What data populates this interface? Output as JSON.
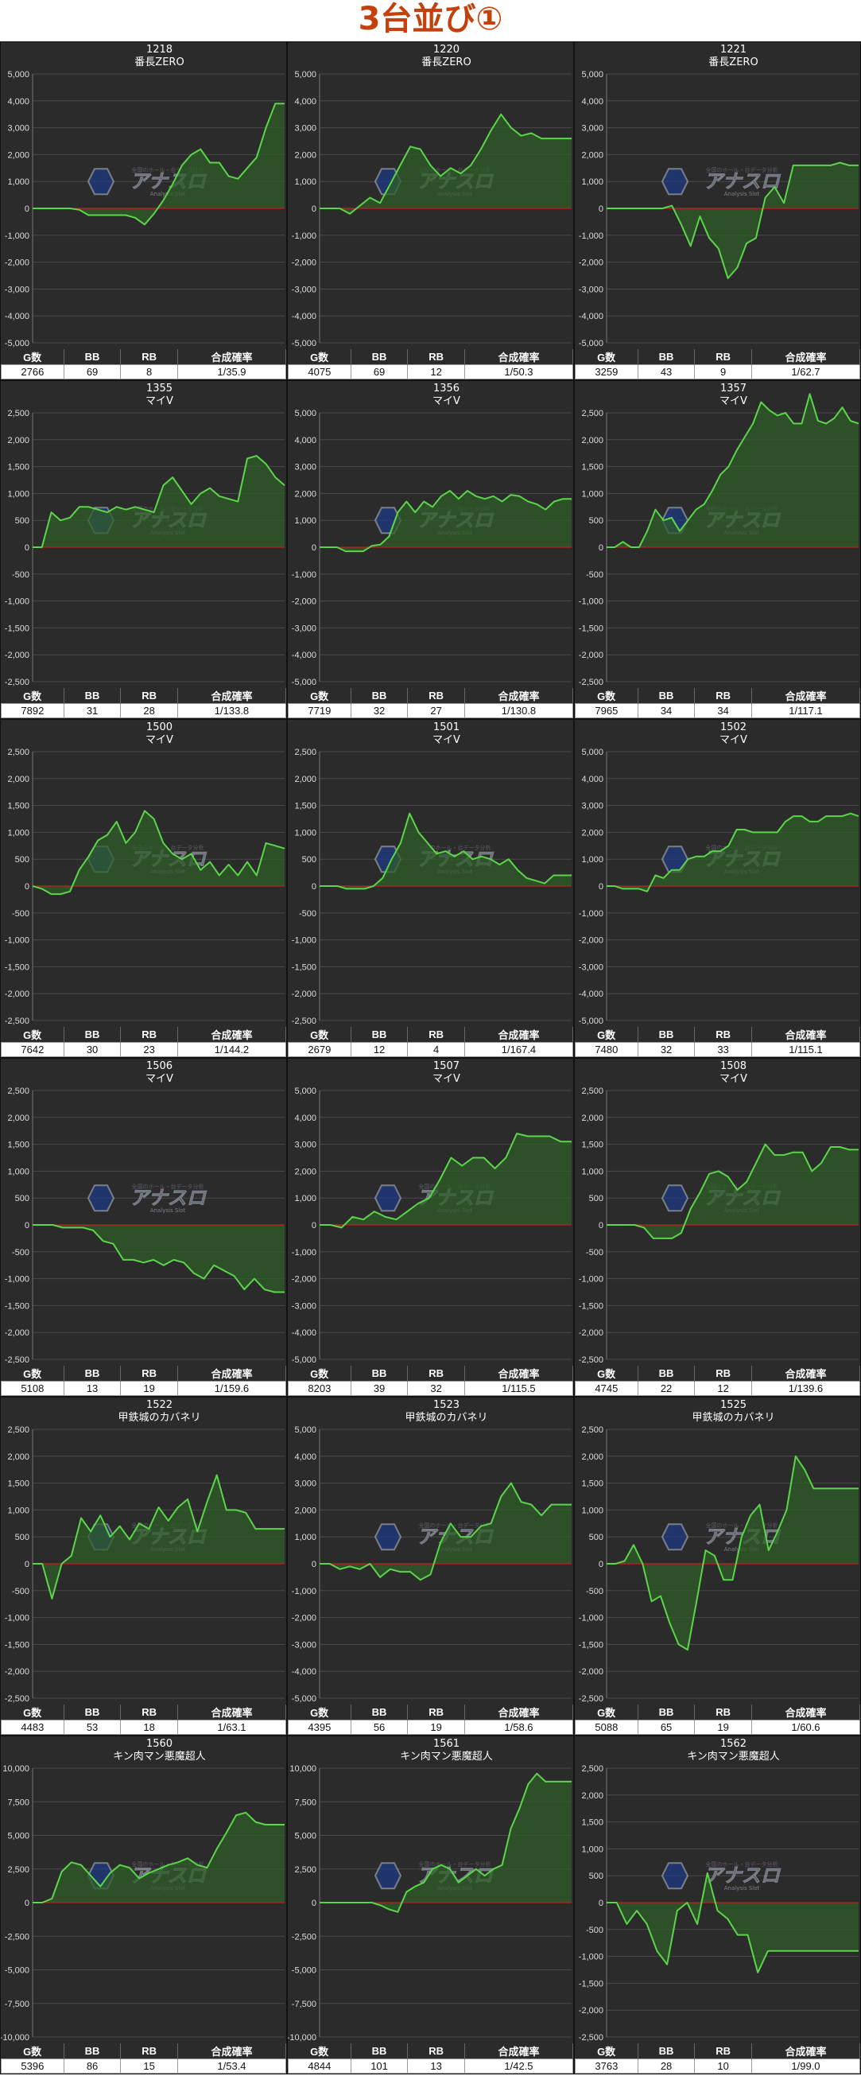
{
  "page": {
    "title": "3台並び①"
  },
  "table_headers": [
    "G数",
    "BB",
    "RB",
    "合成確率"
  ],
  "colors": {
    "line": "#5bd54a",
    "fill": "#2f5d2a",
    "zero": "#c81e1e",
    "grid": "#4a4a4a",
    "bg": "#2b2b2b",
    "title": "#c2410c"
  },
  "watermark": {
    "main": "アナスロ",
    "sub": "Analysis Slot",
    "top": "全国のホール・台データ分析"
  },
  "chart_data": [
    {
      "type": "line",
      "number": "1218",
      "machine": "番長ZERO",
      "ylim": [
        -5000,
        5000
      ],
      "yticks": [
        -5000,
        -4000,
        -3000,
        -2000,
        -1000,
        0,
        1000,
        2000,
        3000,
        4000,
        5000
      ],
      "tick_labels": [
        "-5,000",
        "-4,000",
        "-3,000",
        "-2,000",
        "-1,000",
        "0",
        "1,000",
        "2,000",
        "3,000",
        "4,000",
        "5,000"
      ],
      "values": [
        0,
        0,
        0,
        0,
        0,
        -50,
        -250,
        -250,
        -250,
        -250,
        -250,
        -350,
        -600,
        -200,
        300,
        900,
        1600,
        2000,
        2200,
        1700,
        1700,
        1200,
        1100,
        1500,
        1900,
        3000,
        3900,
        3900
      ],
      "stats": {
        "g": "2766",
        "bb": "69",
        "rb": "8",
        "prob": "1/35.9"
      }
    },
    {
      "type": "line",
      "number": "1220",
      "machine": "番長ZERO",
      "ylim": [
        -5000,
        5000
      ],
      "yticks": [
        -5000,
        -4000,
        -3000,
        -2000,
        -1000,
        0,
        1000,
        2000,
        3000,
        4000,
        5000
      ],
      "tick_labels": [
        "-5,000",
        "-4,000",
        "-3,000",
        "-2,000",
        "-1,000",
        "0",
        "1,000",
        "2,000",
        "3,000",
        "4,000",
        "5,000"
      ],
      "values": [
        0,
        0,
        0,
        -200,
        100,
        400,
        200,
        900,
        1600,
        2300,
        2200,
        1600,
        1200,
        1500,
        1300,
        1600,
        2200,
        2900,
        3500,
        3000,
        2700,
        2800,
        2600,
        2600,
        2600,
        2600
      ],
      "stats": {
        "g": "4075",
        "bb": "69",
        "rb": "12",
        "prob": "1/50.3"
      }
    },
    {
      "type": "line",
      "number": "1221",
      "machine": "番長ZERO",
      "ylim": [
        -5000,
        5000
      ],
      "yticks": [
        -5000,
        -4000,
        -3000,
        -2000,
        -1000,
        0,
        1000,
        2000,
        3000,
        4000,
        5000
      ],
      "tick_labels": [
        "-5,000",
        "-4,000",
        "-3,000",
        "-2,000",
        "-1,000",
        "0",
        "1,000",
        "2,000",
        "3,000",
        "4,000",
        "5,000"
      ],
      "values": [
        0,
        0,
        0,
        0,
        0,
        0,
        0,
        100,
        -600,
        -1400,
        -300,
        -1100,
        -1500,
        -2600,
        -2200,
        -1300,
        -1100,
        400,
        800,
        200,
        1600,
        1600,
        1600,
        1600,
        1600,
        1700,
        1600,
        1600
      ],
      "stats": {
        "g": "3259",
        "bb": "43",
        "rb": "9",
        "prob": "1/62.7"
      }
    },
    {
      "type": "line",
      "number": "1355",
      "machine": "マイV",
      "ylim": [
        -2500,
        2500
      ],
      "yticks": [
        -2500,
        -2000,
        -1500,
        -1000,
        -500,
        0,
        500,
        1000,
        1500,
        2000,
        2500
      ],
      "tick_labels": [
        "-2,500",
        "-2,000",
        "-1,500",
        "-1,000",
        "-500",
        "0",
        "500",
        "1,000",
        "1,500",
        "2,000",
        "2,500"
      ],
      "values": [
        0,
        0,
        650,
        500,
        550,
        750,
        750,
        700,
        650,
        750,
        700,
        750,
        700,
        650,
        1150,
        1300,
        1050,
        800,
        1000,
        1100,
        950,
        900,
        850,
        1650,
        1700,
        1550,
        1300,
        1150
      ],
      "stats": {
        "g": "7892",
        "bb": "31",
        "rb": "28",
        "prob": "1/133.8"
      }
    },
    {
      "type": "line",
      "number": "1356",
      "machine": "マイV",
      "ylim": [
        -5000,
        5000
      ],
      "yticks": [
        -5000,
        -4000,
        -3000,
        -2000,
        -1000,
        0,
        1000,
        2000,
        3000,
        4000,
        5000
      ],
      "tick_labels": [
        "-5,000",
        "-4,000",
        "-3,000",
        "-2,000",
        "-1,000",
        "0",
        "1,000",
        "2,000",
        "3,000",
        "4,000",
        "5,000"
      ],
      "values": [
        0,
        0,
        0,
        -150,
        -150,
        -150,
        50,
        100,
        400,
        1300,
        1700,
        1300,
        1700,
        1500,
        1900,
        2100,
        1800,
        2100,
        1900,
        1800,
        1900,
        1700,
        1950,
        1900,
        1700,
        1600,
        1400,
        1700,
        1800,
        1800
      ],
      "stats": {
        "g": "7719",
        "bb": "32",
        "rb": "27",
        "prob": "1/130.8"
      }
    },
    {
      "type": "line",
      "number": "1357",
      "machine": "マイV",
      "ylim": [
        -2500,
        2500
      ],
      "yticks": [
        -2500,
        -2000,
        -1500,
        -1000,
        -500,
        0,
        500,
        1000,
        1500,
        2000,
        2500
      ],
      "tick_labels": [
        "-2,500",
        "-2,000",
        "-1,500",
        "-1,000",
        "-500",
        "0",
        "500",
        "1,000",
        "1,500",
        "2,000",
        "2,500"
      ],
      "values": [
        0,
        0,
        100,
        0,
        0,
        300,
        700,
        500,
        550,
        300,
        500,
        700,
        800,
        1050,
        1350,
        1500,
        1800,
        2050,
        2300,
        2700,
        2550,
        2450,
        2500,
        2300,
        2300,
        2850,
        2350,
        2300,
        2400,
        2600,
        2350,
        2300
      ],
      "stats": {
        "g": "7965",
        "bb": "34",
        "rb": "34",
        "prob": "1/117.1"
      }
    },
    {
      "type": "line",
      "number": "1500",
      "machine": "マイV",
      "ylim": [
        -2500,
        2500
      ],
      "yticks": [
        -2500,
        -2000,
        -1500,
        -1000,
        -500,
        0,
        500,
        1000,
        1500,
        2000,
        2500
      ],
      "tick_labels": [
        "-2,500",
        "-2,000",
        "-1,500",
        "-1,000",
        "-500",
        "0",
        "500",
        "1,000",
        "1,500",
        "2,000",
        "2,500"
      ],
      "values": [
        0,
        -50,
        -150,
        -150,
        -100,
        300,
        550,
        850,
        950,
        1200,
        800,
        1000,
        1400,
        1250,
        800,
        600,
        500,
        600,
        300,
        450,
        200,
        400,
        200,
        450,
        200,
        800,
        750,
        700
      ],
      "stats": {
        "g": "7642",
        "bb": "30",
        "rb": "23",
        "prob": "1/144.2"
      }
    },
    {
      "type": "line",
      "number": "1501",
      "machine": "マイV",
      "ylim": [
        -2500,
        2500
      ],
      "yticks": [
        -2500,
        -2000,
        -1500,
        -1000,
        -500,
        0,
        500,
        1000,
        1500,
        2000,
        2500
      ],
      "tick_labels": [
        "-2,500",
        "-2,000",
        "-1,500",
        "-1,000",
        "-500",
        "0",
        "500",
        "1,000",
        "1,500",
        "2,000",
        "2,500"
      ],
      "values": [
        0,
        0,
        0,
        -50,
        -50,
        -50,
        0,
        150,
        500,
        800,
        1350,
        1000,
        800,
        600,
        650,
        550,
        650,
        500,
        550,
        500,
        400,
        500,
        300,
        150,
        100,
        50,
        200,
        200,
        200
      ],
      "stats": {
        "g": "2679",
        "bb": "12",
        "rb": "4",
        "prob": "1/167.4"
      }
    },
    {
      "type": "line",
      "number": "1502",
      "machine": "マイV",
      "ylim": [
        -5000,
        5000
      ],
      "yticks": [
        -5000,
        -4000,
        -3000,
        -2000,
        -1000,
        0,
        1000,
        2000,
        3000,
        4000,
        5000
      ],
      "tick_labels": [
        "-5,000",
        "-4,000",
        "-3,000",
        "-2,000",
        "-1,000",
        "0",
        "1,000",
        "2,000",
        "3,000",
        "4,000",
        "5,000"
      ],
      "values": [
        0,
        0,
        -100,
        -100,
        -100,
        -200,
        400,
        300,
        600,
        600,
        1000,
        1100,
        1100,
        1300,
        1300,
        1500,
        2100,
        2100,
        2000,
        2000,
        2000,
        2000,
        2400,
        2600,
        2600,
        2400,
        2400,
        2600,
        2600,
        2600,
        2700,
        2600
      ],
      "stats": {
        "g": "7480",
        "bb": "32",
        "rb": "33",
        "prob": "1/115.1"
      }
    },
    {
      "type": "line",
      "number": "1506",
      "machine": "マイV",
      "ylim": [
        -2500,
        2500
      ],
      "yticks": [
        -2500,
        -2000,
        -1500,
        -1000,
        -500,
        0,
        500,
        1000,
        1500,
        2000,
        2500
      ],
      "tick_labels": [
        "-2,500",
        "-2,000",
        "-1,500",
        "-1,000",
        "-500",
        "0",
        "500",
        "1,000",
        "1,500",
        "2,000",
        "2,500"
      ],
      "values": [
        0,
        0,
        0,
        -50,
        -50,
        -50,
        -100,
        -300,
        -350,
        -650,
        -650,
        -700,
        -650,
        -750,
        -650,
        -700,
        -900,
        -1000,
        -750,
        -850,
        -950,
        -1200,
        -1000,
        -1200,
        -1250,
        -1250
      ],
      "stats": {
        "g": "5108",
        "bb": "13",
        "rb": "19",
        "prob": "1/159.6"
      }
    },
    {
      "type": "line",
      "number": "1507",
      "machine": "マイV",
      "ylim": [
        -5000,
        5000
      ],
      "yticks": [
        -5000,
        -4000,
        -3000,
        -2000,
        -1000,
        0,
        1000,
        2000,
        3000,
        4000,
        5000
      ],
      "tick_labels": [
        "-5,000",
        "-4,000",
        "-3,000",
        "-2,000",
        "-1,000",
        "0",
        "1,000",
        "2,000",
        "3,000",
        "4,000",
        "5,000"
      ],
      "values": [
        0,
        0,
        -100,
        300,
        200,
        500,
        300,
        200,
        500,
        800,
        1000,
        1700,
        2500,
        2200,
        2500,
        2500,
        2100,
        2500,
        3400,
        3300,
        3300,
        3300,
        3100,
        3100
      ],
      "stats": {
        "g": "8203",
        "bb": "39",
        "rb": "32",
        "prob": "1/115.5"
      }
    },
    {
      "type": "line",
      "number": "1508",
      "machine": "マイV",
      "ylim": [
        -2500,
        2500
      ],
      "yticks": [
        -2500,
        -2000,
        -1500,
        -1000,
        -500,
        0,
        500,
        1000,
        1500,
        2000,
        2500
      ],
      "tick_labels": [
        "-2,500",
        "-2,000",
        "-1,500",
        "-1,000",
        "-500",
        "0",
        "500",
        "1,000",
        "1,500",
        "2,000",
        "2,500"
      ],
      "values": [
        0,
        0,
        0,
        0,
        -50,
        -250,
        -250,
        -250,
        -150,
        300,
        600,
        950,
        1000,
        900,
        650,
        800,
        1150,
        1500,
        1300,
        1300,
        1350,
        1350,
        1000,
        1150,
        1450,
        1450,
        1400,
        1400
      ],
      "stats": {
        "g": "4745",
        "bb": "22",
        "rb": "12",
        "prob": "1/139.6"
      }
    },
    {
      "type": "line",
      "number": "1522",
      "machine": "甲鉄城のカバネリ",
      "ylim": [
        -2500,
        2500
      ],
      "yticks": [
        -2500,
        -2000,
        -1500,
        -1000,
        -500,
        0,
        500,
        1000,
        1500,
        2000,
        2500
      ],
      "tick_labels": [
        "-2,500",
        "-2,000",
        "-1,500",
        "-1,000",
        "-500",
        "0",
        "500",
        "1,000",
        "1,500",
        "2,000",
        "2,500"
      ],
      "values": [
        0,
        0,
        -650,
        0,
        150,
        850,
        600,
        900,
        500,
        700,
        450,
        750,
        650,
        1050,
        800,
        1050,
        1200,
        600,
        1150,
        1650,
        1000,
        1000,
        950,
        650,
        650,
        650,
        650
      ],
      "stats": {
        "g": "4483",
        "bb": "53",
        "rb": "18",
        "prob": "1/63.1"
      }
    },
    {
      "type": "line",
      "number": "1523",
      "machine": "甲鉄城のカバネリ",
      "ylim": [
        -5000,
        5000
      ],
      "yticks": [
        -5000,
        -4000,
        -3000,
        -2000,
        -1000,
        0,
        1000,
        2000,
        3000,
        4000,
        5000
      ],
      "tick_labels": [
        "-5,000",
        "-4,000",
        "-3,000",
        "-2,000",
        "-1,000",
        "0",
        "1,000",
        "2,000",
        "3,000",
        "4,000",
        "5,000"
      ],
      "values": [
        0,
        0,
        -200,
        -100,
        -200,
        0,
        -500,
        -200,
        -300,
        -300,
        -600,
        -400,
        800,
        1500,
        1000,
        1000,
        1400,
        1500,
        2500,
        3000,
        2300,
        2200,
        1800,
        2200,
        2200,
        2200
      ],
      "stats": {
        "g": "4395",
        "bb": "56",
        "rb": "19",
        "prob": "1/58.6"
      }
    },
    {
      "type": "line",
      "number": "1525",
      "machine": "甲鉄城のカバネリ",
      "ylim": [
        -2500,
        2500
      ],
      "yticks": [
        -2500,
        -2000,
        -1500,
        -1000,
        -500,
        0,
        500,
        1000,
        1500,
        2000,
        2500
      ],
      "tick_labels": [
        "-2,500",
        "-2,000",
        "-1,500",
        "-1,000",
        "-500",
        "0",
        "500",
        "1,000",
        "1,500",
        "2,000",
        "2,500"
      ],
      "values": [
        0,
        0,
        50,
        350,
        0,
        -700,
        -600,
        -1100,
        -1500,
        -1600,
        -700,
        250,
        150,
        -300,
        -300,
        500,
        900,
        1100,
        250,
        600,
        1000,
        2000,
        1750,
        1400,
        1400,
        1400,
        1400,
        1400,
        1400
      ],
      "stats": {
        "g": "5088",
        "bb": "65",
        "rb": "19",
        "prob": "1/60.6"
      }
    },
    {
      "type": "line",
      "number": "1560",
      "machine": "キン肉マン悪魔超人",
      "ylim": [
        -10000,
        10000
      ],
      "yticks": [
        -10000,
        -7500,
        -5000,
        -2500,
        0,
        2500,
        5000,
        7500,
        10000
      ],
      "tick_labels": [
        "-10,000",
        "-7,500",
        "-5,000",
        "-2,500",
        "0",
        "2,500",
        "5,000",
        "7,500",
        "10,000"
      ],
      "values": [
        0,
        0,
        300,
        2300,
        3000,
        2800,
        2000,
        1200,
        2200,
        2800,
        2600,
        1800,
        2200,
        2500,
        2800,
        3000,
        3300,
        2800,
        2600,
        4000,
        5200,
        6500,
        6700,
        6000,
        5800,
        5800,
        5800
      ],
      "stats": {
        "g": "5396",
        "bb": "86",
        "rb": "15",
        "prob": "1/53.4"
      }
    },
    {
      "type": "line",
      "number": "1561",
      "machine": "キン肉マン悪魔超人",
      "ylim": [
        -10000,
        10000
      ],
      "yticks": [
        -10000,
        -7500,
        -5000,
        -2500,
        0,
        2500,
        5000,
        7500,
        10000
      ],
      "tick_labels": [
        "-10,000",
        "-7,500",
        "-5,000",
        "-2,500",
        "0",
        "2,500",
        "5,000",
        "7,500",
        "10,000"
      ],
      "values": [
        0,
        0,
        0,
        0,
        0,
        0,
        0,
        -200,
        -500,
        -700,
        800,
        1200,
        1500,
        2500,
        2800,
        2500,
        1500,
        2000,
        2500,
        2000,
        2500,
        2800,
        5500,
        7000,
        8800,
        9600,
        9000,
        9000,
        9000,
        9000
      ],
      "stats": {
        "g": "4844",
        "bb": "101",
        "rb": "13",
        "prob": "1/42.5"
      }
    },
    {
      "type": "line",
      "number": "1562",
      "machine": "キン肉マン悪魔超人",
      "ylim": [
        -2500,
        2500
      ],
      "yticks": [
        -2500,
        -2000,
        -1500,
        -1000,
        -500,
        0,
        500,
        1000,
        1500,
        2000,
        2500
      ],
      "tick_labels": [
        "-2,500",
        "-2,000",
        "-1,500",
        "-1,000",
        "-500",
        "0",
        "500",
        "1,000",
        "1,500",
        "2,000",
        "2,500"
      ],
      "values": [
        0,
        0,
        -400,
        -150,
        -400,
        -900,
        -1150,
        -150,
        0,
        -400,
        550,
        -150,
        -300,
        -600,
        -600,
        -1300,
        -900,
        -900,
        -900,
        -900,
        -900,
        -900,
        -900,
        -900,
        -900,
        -900
      ],
      "stats": {
        "g": "3763",
        "bb": "28",
        "rb": "10",
        "prob": "1/99.0"
      }
    }
  ]
}
